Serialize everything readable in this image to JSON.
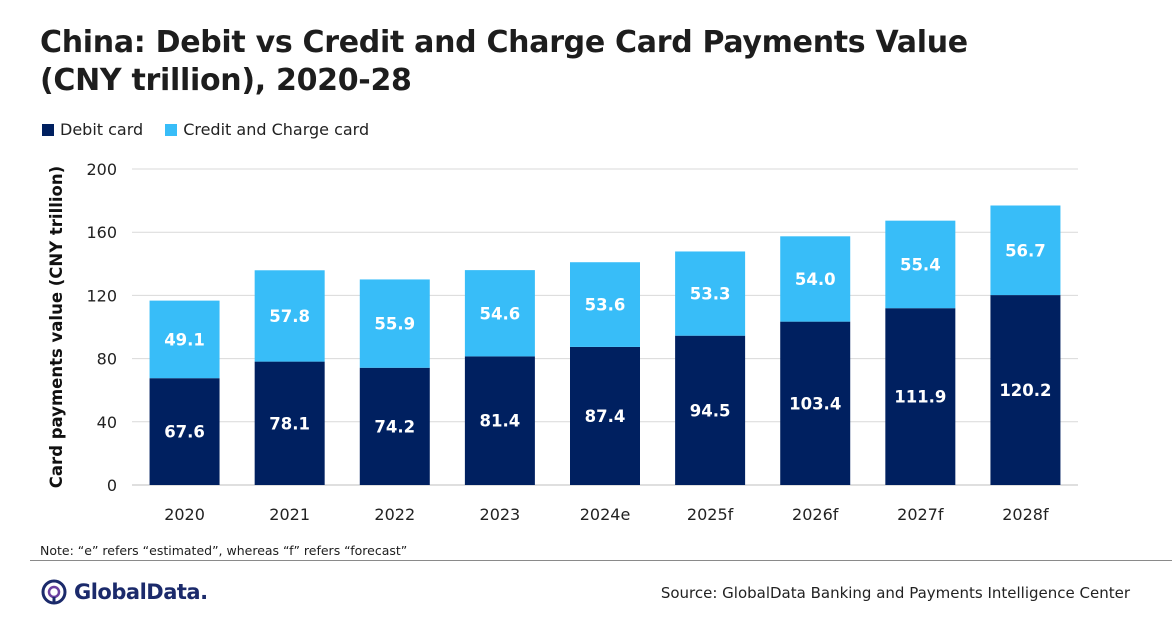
{
  "header": {
    "title_line1": "China: Debit vs Credit and Charge Card Payments Value",
    "title_line2": "(CNY trillion), 2020-28"
  },
  "footer": {
    "note": "Note: “e” refers “estimated”, whereas “f” refers “forecast”",
    "brand": "GlobalData.",
    "source": "Source: GlobalData Banking and Payments Intelligence Center"
  },
  "colors": {
    "debit": "#002060",
    "credit": "#38bdf8",
    "grid": "#d9d9d9"
  },
  "chart_data": {
    "type": "bar",
    "stacked": true,
    "title": "China: Debit vs Credit and Charge Card Payments Value (CNY trillion), 2020-28",
    "xlabel": "",
    "ylabel": "Card payments value (CNY trillion)",
    "ylim": [
      0,
      200
    ],
    "yticks": [
      "0",
      "40",
      "80",
      "120",
      "160",
      "200"
    ],
    "grid": true,
    "legend_position": "top-left",
    "categories": [
      "2020",
      "2021",
      "2022",
      "2023",
      "2024e",
      "2025f",
      "2026f",
      "2027f",
      "2028f"
    ],
    "series": [
      {
        "name": "Debit card",
        "values": [
          67.6,
          78.1,
          74.2,
          81.4,
          87.4,
          94.5,
          103.4,
          111.9,
          120.2
        ]
      },
      {
        "name": "Credit and Charge card",
        "values": [
          49.1,
          57.8,
          55.9,
          54.6,
          53.6,
          53.3,
          54.0,
          55.4,
          56.7
        ]
      }
    ]
  }
}
